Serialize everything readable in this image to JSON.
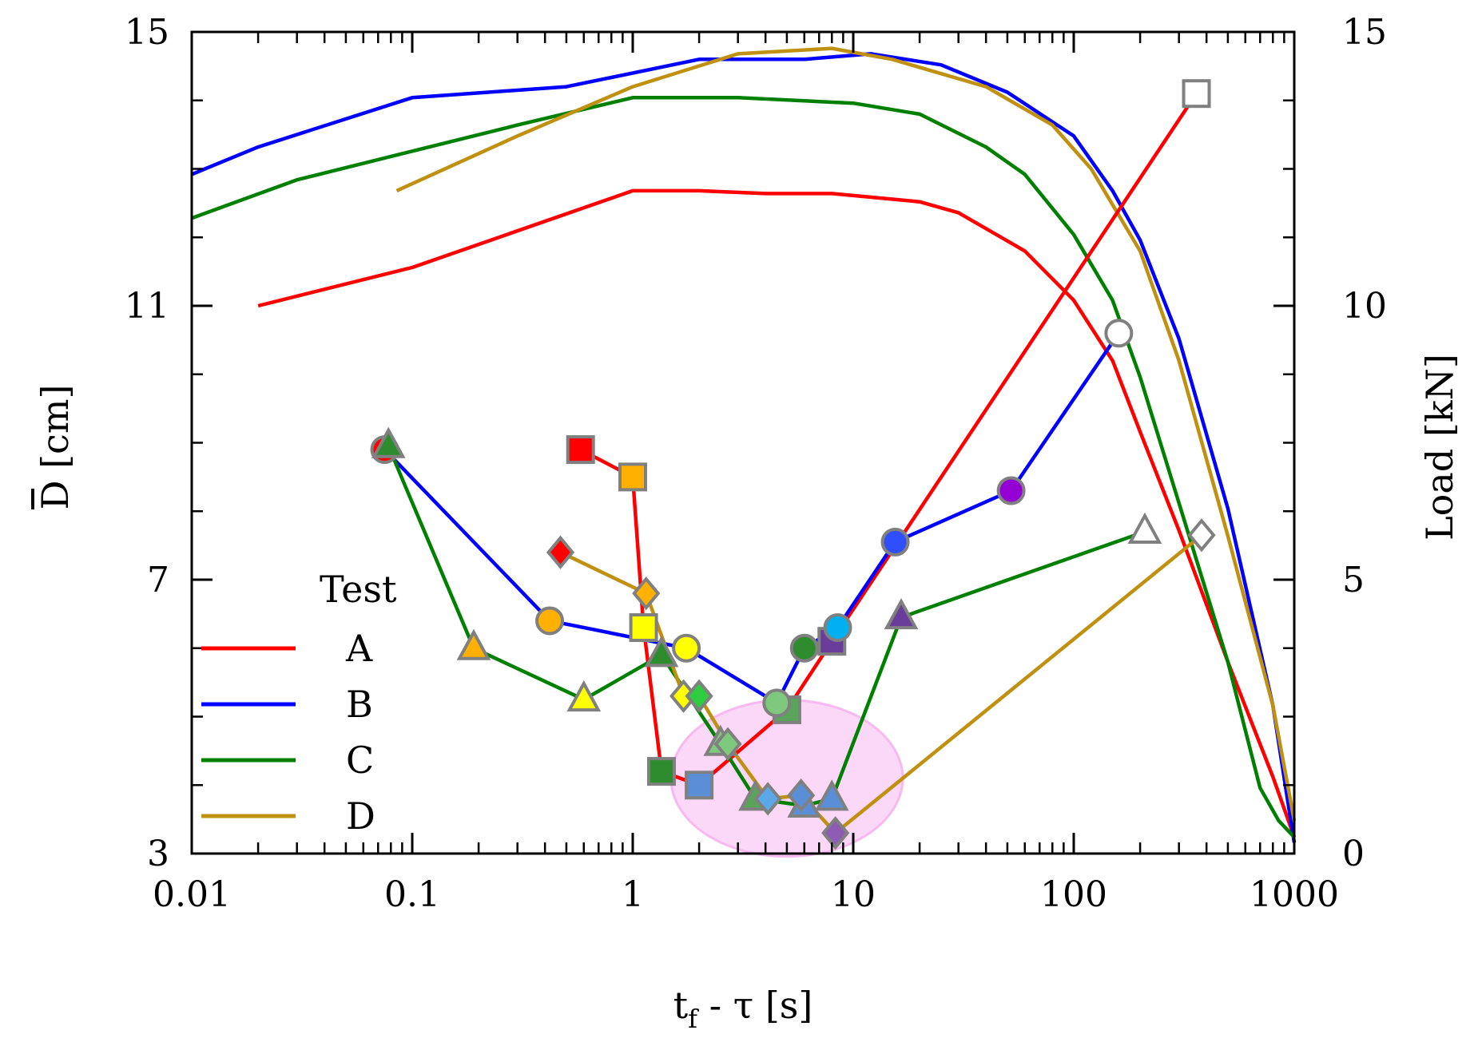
{
  "chart_data": {
    "type": "line",
    "x_scale": "log",
    "xlim": [
      0.01,
      1000
    ],
    "ylim": [
      3,
      15
    ],
    "y2lim": [
      0,
      15
    ],
    "xlabel_main": "t",
    "xlabel_sub": "f",
    "xlabel_rest": " - τ [s]",
    "ylabel": "D [cm]",
    "y2label": "Load [kN]",
    "xticks": [
      {
        "v": 0.01,
        "label": "0.01"
      },
      {
        "v": 0.1,
        "label": "0.1"
      },
      {
        "v": 1,
        "label": "1"
      },
      {
        "v": 10,
        "label": "10"
      },
      {
        "v": 100,
        "label": "100"
      },
      {
        "v": 1000,
        "label": "1000"
      }
    ],
    "yticks": [
      {
        "v": 3,
        "label": "3"
      },
      {
        "v": 7,
        "label": "7"
      },
      {
        "v": 11,
        "label": "11"
      },
      {
        "v": 15,
        "label": "15"
      }
    ],
    "y2ticks": [
      {
        "v": 0,
        "label": "0"
      },
      {
        "v": 5,
        "label": "5"
      },
      {
        "v": 10,
        "label": "10"
      },
      {
        "v": 15,
        "label": "15"
      }
    ],
    "legend": {
      "title": "Test",
      "entries": [
        {
          "name": "A",
          "color": "#ff0000"
        },
        {
          "name": "B",
          "color": "#0000ff"
        },
        {
          "name": "C",
          "color": "#008000"
        },
        {
          "name": "D",
          "color": "#c09010"
        }
      ]
    },
    "load_series": [
      {
        "name": "A",
        "color": "#ff0000",
        "points": [
          [
            0.02,
            10
          ],
          [
            0.1,
            10.7
          ],
          [
            1,
            12.1
          ],
          [
            2,
            12.1
          ],
          [
            4,
            12.05
          ],
          [
            8,
            12.05
          ],
          [
            20,
            11.9
          ],
          [
            30,
            11.7
          ],
          [
            60,
            11.0
          ],
          [
            100,
            10.1
          ],
          [
            150,
            9.0
          ],
          [
            200,
            7.7
          ],
          [
            300,
            5.9
          ],
          [
            500,
            3.5
          ],
          [
            800,
            1.4
          ],
          [
            1000,
            0.3
          ]
        ]
      },
      {
        "name": "B",
        "color": "#0000ff",
        "points": [
          [
            0.01,
            12.4
          ],
          [
            0.02,
            12.9
          ],
          [
            0.1,
            13.8
          ],
          [
            0.5,
            14.0
          ],
          [
            2,
            14.5
          ],
          [
            6,
            14.5
          ],
          [
            12,
            14.6
          ],
          [
            25,
            14.4
          ],
          [
            50,
            13.9
          ],
          [
            100,
            13.1
          ],
          [
            150,
            12.1
          ],
          [
            200,
            11.2
          ],
          [
            300,
            9.4
          ],
          [
            500,
            6.3
          ],
          [
            800,
            2.7
          ],
          [
            1000,
            0.2
          ]
        ]
      },
      {
        "name": "C",
        "color": "#008000",
        "points": [
          [
            0.01,
            11.6
          ],
          [
            0.03,
            12.3
          ],
          [
            0.3,
            13.3
          ],
          [
            1,
            13.8
          ],
          [
            3,
            13.8
          ],
          [
            10,
            13.7
          ],
          [
            20,
            13.5
          ],
          [
            40,
            12.9
          ],
          [
            60,
            12.4
          ],
          [
            100,
            11.3
          ],
          [
            150,
            10.1
          ],
          [
            200,
            8.7
          ],
          [
            300,
            6.4
          ],
          [
            500,
            3.5
          ],
          [
            700,
            1.2
          ],
          [
            850,
            0.6
          ],
          [
            1000,
            0.3
          ]
        ]
      },
      {
        "name": "D",
        "color": "#c09010",
        "points": [
          [
            0.085,
            12.1
          ],
          [
            0.3,
            13.1
          ],
          [
            1,
            14.0
          ],
          [
            3,
            14.6
          ],
          [
            8,
            14.7
          ],
          [
            15,
            14.5
          ],
          [
            40,
            14.0
          ],
          [
            80,
            13.3
          ],
          [
            120,
            12.5
          ],
          [
            200,
            11.0
          ],
          [
            300,
            9.0
          ],
          [
            500,
            5.8
          ],
          [
            800,
            2.7
          ],
          [
            1000,
            0.6
          ]
        ]
      }
    ],
    "d_series": [
      {
        "name": "A",
        "color": "#ff0000",
        "points": [
          {
            "x": 0.58,
            "y": 8.9,
            "m": "square",
            "f": "#ff0000"
          },
          {
            "x": 1.0,
            "y": 8.5,
            "m": "square",
            "f": "#ffb000"
          },
          {
            "x": 1.12,
            "y": 6.3,
            "m": "square",
            "f": "#ffff00"
          },
          {
            "x": 1.35,
            "y": 4.2,
            "m": "square",
            "f": "#2e8b2e"
          },
          {
            "x": 2.0,
            "y": 4.0,
            "m": "square",
            "f": "#5a8fd8"
          },
          {
            "x": 5.0,
            "y": 5.1,
            "m": "square",
            "f": "#5aa35a"
          },
          {
            "x": 8.0,
            "y": 6.1,
            "m": "square",
            "f": "#6a3d9a"
          },
          {
            "x": 360,
            "y": 14.1,
            "m": "square",
            "f": "#ffffff"
          }
        ]
      },
      {
        "name": "B",
        "color": "#0000ff",
        "points": [
          {
            "x": 0.075,
            "y": 8.9,
            "m": "circle",
            "f": "#ff0000"
          },
          {
            "x": 0.42,
            "y": 6.4,
            "m": "circle",
            "f": "#ffb000"
          },
          {
            "x": 1.75,
            "y": 6.0,
            "m": "circle",
            "f": "#ffff00"
          },
          {
            "x": 4.5,
            "y": 5.2,
            "m": "circle",
            "f": "#7fc97f"
          },
          {
            "x": 6.0,
            "y": 6.0,
            "m": "circle",
            "f": "#2e8b2e"
          },
          {
            "x": 8.5,
            "y": 6.3,
            "m": "circle",
            "f": "#00b0f0"
          },
          {
            "x": 15.5,
            "y": 7.55,
            "m": "circle",
            "f": "#2f4fff"
          },
          {
            "x": 52,
            "y": 8.3,
            "m": "circle",
            "f": "#9400d3"
          },
          {
            "x": 160,
            "y": 10.6,
            "m": "circle",
            "f": "#ffffff"
          }
        ]
      },
      {
        "name": "C",
        "color": "#008000",
        "points": [
          {
            "x": 0.078,
            "y": 8.95,
            "m": "triangle",
            "f": "#2e8b2e"
          },
          {
            "x": 0.19,
            "y": 6.0,
            "m": "triangle",
            "f": "#ffb000"
          },
          {
            "x": 0.6,
            "y": 5.25,
            "m": "triangle",
            "f": "#ffff00"
          },
          {
            "x": 1.35,
            "y": 5.9,
            "m": "triangle",
            "f": "#2e8b2e"
          },
          {
            "x": 2.5,
            "y": 4.6,
            "m": "triangle",
            "f": "#7fc97f"
          },
          {
            "x": 3.6,
            "y": 3.8,
            "m": "triangle",
            "f": "#5aa35a"
          },
          {
            "x": 6.0,
            "y": 3.7,
            "m": "triangle",
            "f": "#5a8fd8"
          },
          {
            "x": 8.0,
            "y": 3.8,
            "m": "triangle",
            "f": "#5a8fd8"
          },
          {
            "x": 16.5,
            "y": 6.45,
            "m": "triangle",
            "f": "#6a3d9a"
          },
          {
            "x": 210,
            "y": 7.7,
            "m": "triangle",
            "f": "#ffffff"
          }
        ]
      },
      {
        "name": "D",
        "color": "#c09010",
        "points": [
          {
            "x": 0.47,
            "y": 7.4,
            "m": "diamond",
            "f": "#ff0000"
          },
          {
            "x": 1.15,
            "y": 6.8,
            "m": "diamond",
            "f": "#ffb000"
          },
          {
            "x": 1.7,
            "y": 5.3,
            "m": "diamond",
            "f": "#ffff00"
          },
          {
            "x": 2.0,
            "y": 5.3,
            "m": "diamond",
            "f": "#2ecc40"
          },
          {
            "x": 2.7,
            "y": 4.6,
            "m": "diamond",
            "f": "#7fc97f"
          },
          {
            "x": 4.1,
            "y": 3.8,
            "m": "diamond",
            "f": "#5aa8e8"
          },
          {
            "x": 5.8,
            "y": 3.85,
            "m": "diamond",
            "f": "#5a8fd8"
          },
          {
            "x": 8.3,
            "y": 3.3,
            "m": "diamond",
            "f": "#8e5cb5"
          },
          {
            "x": 380,
            "y": 7.65,
            "m": "diamond",
            "f": "#ffffff"
          }
        ]
      }
    ],
    "highlight": {
      "cx": 5.0,
      "cy": 4.1,
      "color": "#f8b8f0"
    }
  }
}
